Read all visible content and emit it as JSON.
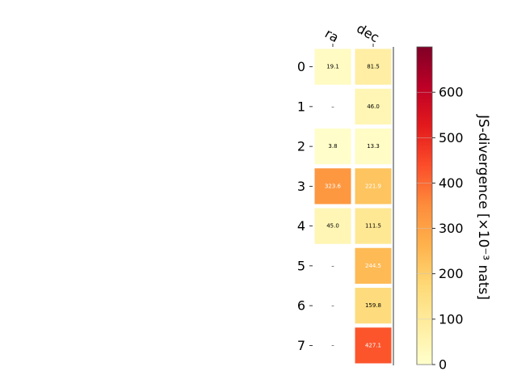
{
  "chart_data": {
    "type": "heatmap",
    "columns": [
      "ra",
      "dec"
    ],
    "rows": [
      "0",
      "1",
      "2",
      "3",
      "4",
      "5",
      "6",
      "7"
    ],
    "values": [
      [
        19.1,
        81.5
      ],
      [
        null,
        46.0
      ],
      [
        3.8,
        13.3
      ],
      [
        323.6,
        221.9
      ],
      [
        45.0,
        111.5
      ],
      [
        null,
        244.5
      ],
      [
        null,
        159.8
      ],
      [
        null,
        427.1
      ]
    ],
    "cell_labels": [
      [
        "19.1",
        "81.5"
      ],
      [
        "–",
        "46.0"
      ],
      [
        "3.8",
        "13.3"
      ],
      [
        "323.6",
        "221.9"
      ],
      [
        "45.0",
        "111.5"
      ],
      [
        "–",
        "244.5"
      ],
      [
        "–",
        "159.8"
      ],
      [
        "–",
        "427.1"
      ]
    ],
    "colorbar": {
      "label": "JS-divergence [×10⁻³ nats]",
      "range": [
        0,
        700
      ],
      "ticks": [
        0,
        100,
        200,
        300,
        400,
        500,
        600
      ],
      "tick_labels": [
        "0",
        "100",
        "200",
        "300",
        "400",
        "500",
        "600"
      ],
      "colormap": "YlOrRd"
    }
  }
}
